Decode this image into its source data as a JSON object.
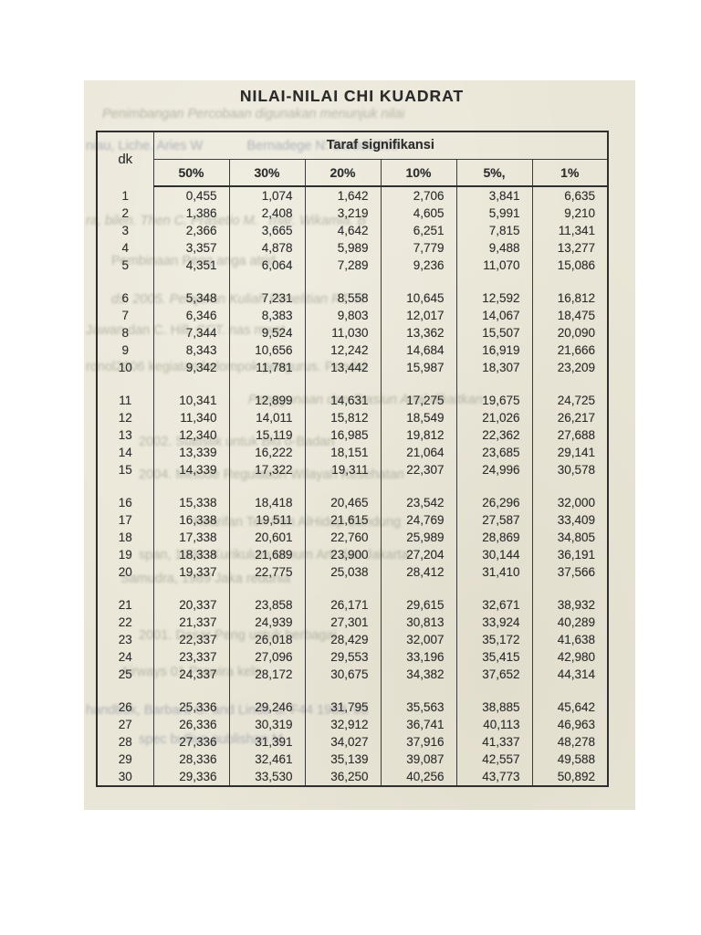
{
  "page": {
    "background_color": "#ffffff",
    "paper_color": "#eae6d7",
    "ink_color": "#2e2e2e",
    "ghost_text_color": "#7f8671"
  },
  "document": {
    "title": "NILAI-NILAI CHI KUADRAT"
  },
  "chart_data": {
    "type": "table",
    "title": "NILAI-NILAI CHI KUADRAT",
    "row_header": "dk",
    "group_header": "Taraf signifikansi",
    "columns": [
      "50%",
      "30%",
      "20%",
      "10%",
      "5%,",
      "1%"
    ],
    "row_group_size": 5,
    "decimal_separator": ",",
    "rows": [
      [
        "1",
        "0,455",
        "1,074",
        "1,642",
        "2,706",
        "3,841",
        "6,635"
      ],
      [
        "2",
        "1,386",
        "2,408",
        "3,219",
        "4,605",
        "5,991",
        "9,210"
      ],
      [
        "3",
        "2,366",
        "3,665",
        "4,642",
        "6,251",
        "7,815",
        "11,341"
      ],
      [
        "4",
        "3,357",
        "4,878",
        "5,989",
        "7,779",
        "9,488",
        "13,277"
      ],
      [
        "5",
        "4,351",
        "6,064",
        "7,289",
        "9,236",
        "11,070",
        "15,086"
      ],
      [
        "6",
        "5,348",
        "7,231",
        "8,558",
        "10,645",
        "12,592",
        "16,812"
      ],
      [
        "7",
        "6,346",
        "8,383",
        "9,803",
        "12,017",
        "14,067",
        "18,475"
      ],
      [
        "8",
        "7,344",
        "9,524",
        "11,030",
        "13,362",
        "15,507",
        "20,090"
      ],
      [
        "9",
        "8,343",
        "10,656",
        "12,242",
        "14,684",
        "16,919",
        "21,666"
      ],
      [
        "10",
        "9,342",
        "11,781",
        "13,442",
        "15,987",
        "18,307",
        "23,209"
      ],
      [
        "11",
        "10,341",
        "12,899",
        "14,631",
        "17,275",
        "19,675",
        "24,725"
      ],
      [
        "12",
        "11,340",
        "14,011",
        "15,812",
        "18,549",
        "21,026",
        "26,217"
      ],
      [
        "13",
        "12,340",
        "15,119",
        "16,985",
        "19,812",
        "22,362",
        "27,688"
      ],
      [
        "14",
        "13,339",
        "16,222",
        "18,151",
        "21,064",
        "23,685",
        "29,141"
      ],
      [
        "15",
        "14,339",
        "17,322",
        "19,311",
        "22,307",
        "24,996",
        "30,578"
      ],
      [
        "16",
        "15,338",
        "18,418",
        "20,465",
        "23,542",
        "26,296",
        "32,000"
      ],
      [
        "17",
        "16,338",
        "19,511",
        "21,615",
        "24,769",
        "27,587",
        "33,409"
      ],
      [
        "18",
        "17,338",
        "20,601",
        "22,760",
        "25,989",
        "28,869",
        "34,805"
      ],
      [
        "19",
        "18,338",
        "21,689",
        "23,900",
        "27,204",
        "30,144",
        "36,191"
      ],
      [
        "20",
        "19,337",
        "22,775",
        "25,038",
        "28,412",
        "31,410",
        "37,566"
      ],
      [
        "21",
        "20,337",
        "23,858",
        "26,171",
        "29,615",
        "32,671",
        "38,932"
      ],
      [
        "22",
        "21,337",
        "24,939",
        "27,301",
        "30,813",
        "33,924",
        "40,289"
      ],
      [
        "23",
        "22,337",
        "26,018",
        "28,429",
        "32,007",
        "35,172",
        "41,638"
      ],
      [
        "24",
        "23,337",
        "27,096",
        "29,553",
        "33,196",
        "35,415",
        "42,980"
      ],
      [
        "25",
        "24,337",
        "28,172",
        "30,675",
        "34,382",
        "37,652",
        "44,314"
      ],
      [
        "26",
        "25,336",
        "29,246",
        "31,795",
        "35,563",
        "38,885",
        "45,642"
      ],
      [
        "27",
        "26,336",
        "30,319",
        "32,912",
        "36,741",
        "40,113",
        "46,963"
      ],
      [
        "28",
        "27,336",
        "31,391",
        "34,027",
        "37,916",
        "41,337",
        "48,278"
      ],
      [
        "29",
        "28,336",
        "32,461",
        "35,139",
        "39,087",
        "42,557",
        "49,588"
      ],
      [
        "30",
        "29,336",
        "33,530",
        "36,250",
        "40,256",
        "43,773",
        "50,892"
      ]
    ]
  },
  "ghost": {
    "description": "faint bleed-through text from reverse page",
    "lines": [
      "Penimbangan Percobaan digunakan menunjuk nilai",
      "niau, Liche. Aries W            Bernadege N: Scr8dU200",
      "ra, bilen. Then C. Prasetio M.   rnar. Wikamia. B",
      "Pembinaan Peng anga atrid",
      "ds. 2005. Pelajaran Kuliah Penelitian RT. R",
      "Jawan dan C. Hill, CCT. nas mwst",
      "ronol2006 kegiatan kelompok pengurus. Pendid",
      "Penggunaan dan Stasiun Anal dikaitkan",
      "2002. Statistik untuk Bid o-Badan",
      "2004. Metode Regulation Wilayah Kesehatan",
      "Kearifan Ten Pen AlHidup Bandung",
      "span, 1990. Kurikulum Umum Arti dan Jakarta",
      "Samudra, 1989 Jaka redunia",
      "2001. Dasar Peng untuk berbagai",
      "Airways 01 Prawira keln",
      "handbuk, Barbara G. and Linda S. F44 1989. 03",
      "spec bullius publishan M"
    ]
  }
}
